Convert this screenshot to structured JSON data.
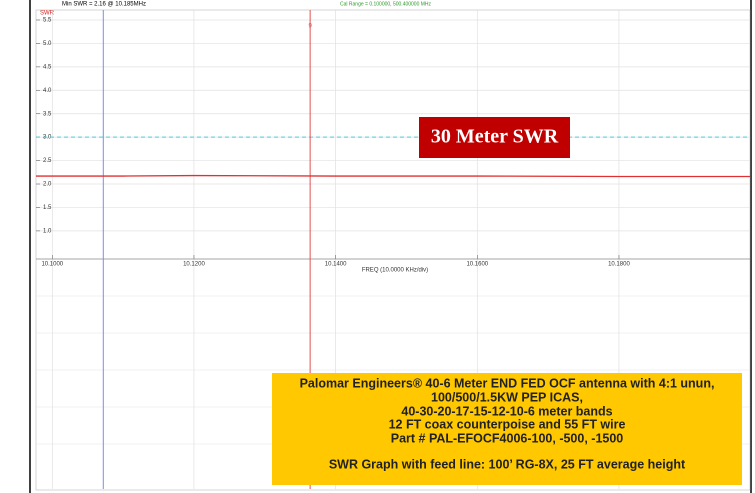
{
  "chart_data": {
    "type": "line",
    "header_left": "Min SWR =  2.16 @  10.185MHz",
    "header_right": "Cal Range = 0.100000,  500.400000 MHz",
    "ylabel": "SWR",
    "xlabel": "FREQ (10.0000 KHz/div)",
    "title": "30 Meter SWR",
    "info_lines": [
      "Palomar Engineers® 40-6 Meter END FED OCF antenna with 4:1 unun,",
      "100/500/1.5KW PEP ICAS,",
      "40-30-20-17-15-12-10-6 meter bands",
      "12 FT coax counterpoise and 55 FT wire",
      "Part # PAL-EFOCF4006-100, -500, -1500",
      "SWR Graph with feed line: 100’ RG-8X, 25 FT average height"
    ],
    "x": [
      10.0977,
      10.11,
      10.12,
      10.14,
      10.16,
      10.18,
      10.1985
    ],
    "series": [
      {
        "name": "SWR",
        "color": "#e03030",
        "values": [
          2.17,
          2.17,
          2.18,
          2.17,
          2.17,
          2.16,
          2.16
        ]
      }
    ],
    "xlim": [
      10.0977,
      10.1985
    ],
    "ylim": [
      0.4,
      5.6
    ],
    "xticks": [
      {
        "value": 10.1,
        "label": "10.1000"
      },
      {
        "value": 10.12,
        "label": "10.1200"
      },
      {
        "value": 10.14,
        "label": "10.1400"
      },
      {
        "value": 10.16,
        "label": "10.1600"
      },
      {
        "value": 10.18,
        "label": "10.1800"
      }
    ],
    "yticks": [
      {
        "value": 1,
        "label": "1.0"
      },
      1.5,
      {
        "value": 2,
        "label": "2.0"
      },
      2.5,
      {
        "value": 3,
        "label": "3.0"
      },
      3.5,
      {
        "value": 4,
        "label": "4.0"
      },
      4.5,
      {
        "value": 5,
        "label": "5.0"
      },
      5.5
    ],
    "reference_line": {
      "value": 3,
      "color": "#40d0d8"
    },
    "markers": [
      {
        "x": 10.1072,
        "color": "#7a8cf0"
      },
      {
        "x": 10.1364,
        "color": "#e05050",
        "label": "9"
      }
    ],
    "grid": true
  }
}
